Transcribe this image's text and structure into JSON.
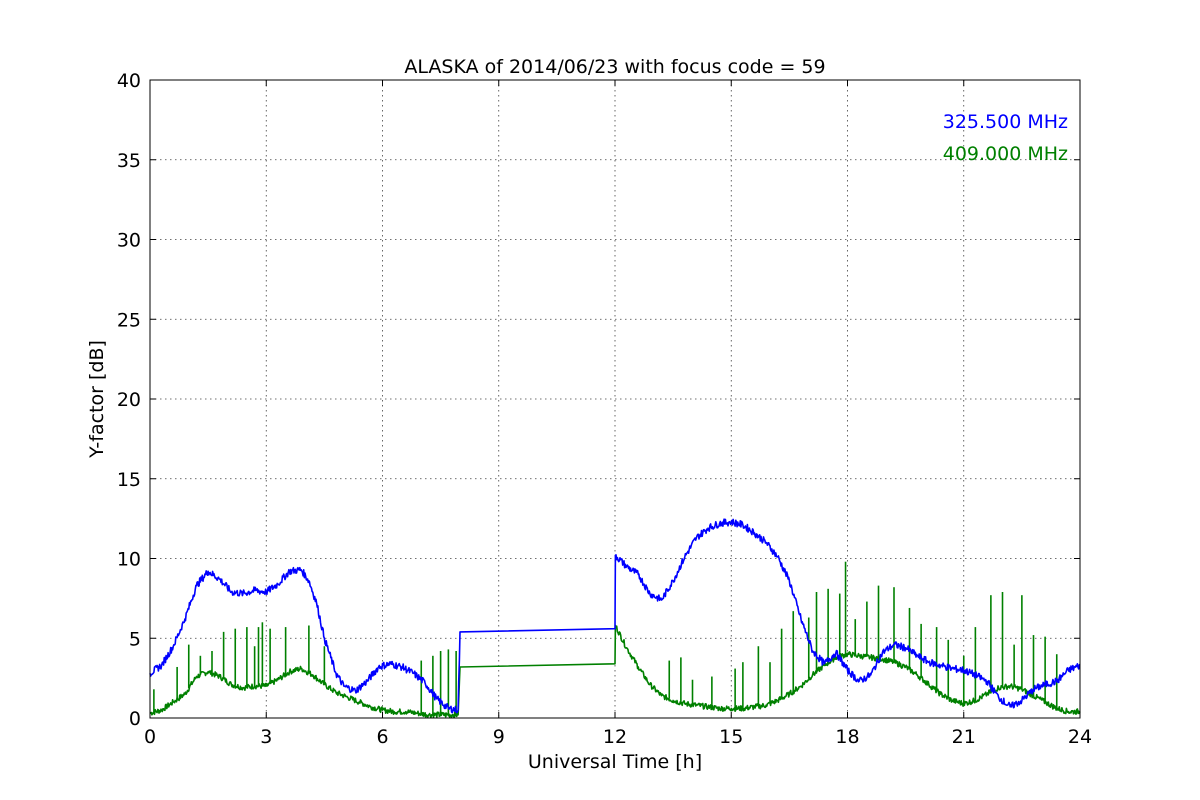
{
  "chart_data": {
    "type": "line",
    "title": "ALASKA of 2014/06/23 with focus code = 59",
    "xlabel": "Universal Time [h]",
    "ylabel": "Y-factor [dB]",
    "xlim": [
      0,
      24
    ],
    "ylim": [
      0,
      40
    ],
    "xticks": [
      0,
      3,
      6,
      9,
      12,
      15,
      18,
      21,
      24
    ],
    "yticks": [
      0,
      5,
      10,
      15,
      20,
      25,
      30,
      35,
      40
    ],
    "grid": true,
    "legend_position": "top-right",
    "series": [
      {
        "name": "325.500 MHz",
        "color": "#0000ff",
        "x": [
          0.0,
          0.3,
          0.6,
          0.9,
          1.2,
          1.5,
          1.8,
          2.1,
          2.4,
          2.7,
          3.0,
          3.3,
          3.6,
          3.9,
          4.1,
          4.3,
          4.5,
          4.8,
          5.0,
          5.3,
          5.6,
          5.9,
          6.2,
          6.5,
          6.8,
          7.1,
          7.4,
          7.7,
          7.95,
          8.0,
          12.0,
          12.01,
          12.3,
          12.6,
          12.9,
          13.2,
          13.5,
          13.8,
          14.1,
          14.4,
          14.7,
          15.0,
          15.3,
          15.6,
          15.9,
          16.2,
          16.5,
          16.8,
          17.1,
          17.4,
          17.7,
          18.0,
          18.3,
          18.6,
          18.9,
          19.2,
          19.5,
          19.8,
          20.1,
          20.4,
          20.7,
          21.0,
          21.3,
          21.6,
          21.9,
          22.2,
          22.5,
          22.8,
          23.1,
          23.4,
          23.7,
          24.0
        ],
        "y": [
          2.8,
          3.3,
          4.5,
          6.2,
          8.3,
          9.2,
          8.7,
          7.9,
          7.8,
          8.0,
          7.9,
          8.4,
          9.2,
          9.3,
          8.6,
          7.2,
          5.0,
          2.8,
          2.0,
          1.7,
          2.3,
          3.2,
          3.4,
          3.2,
          2.8,
          2.2,
          1.2,
          0.6,
          0.5,
          5.4,
          5.6,
          10.2,
          9.5,
          9.0,
          7.8,
          7.4,
          8.6,
          10.1,
          11.3,
          11.9,
          12.2,
          12.3,
          12.1,
          11.6,
          11.0,
          10.1,
          8.6,
          6.2,
          4.2,
          3.4,
          4.1,
          3.0,
          2.3,
          2.7,
          4.1,
          4.6,
          4.4,
          3.9,
          3.5,
          3.3,
          3.1,
          3.0,
          2.7,
          2.3,
          1.3,
          0.7,
          1.1,
          1.8,
          2.1,
          2.3,
          3.0,
          3.3
        ]
      },
      {
        "name": "409.000 MHz",
        "color": "#008000",
        "x": [
          0.0,
          0.3,
          0.6,
          0.9,
          1.2,
          1.5,
          1.8,
          2.1,
          2.4,
          2.7,
          3.0,
          3.3,
          3.6,
          3.9,
          4.2,
          4.5,
          4.8,
          5.1,
          5.4,
          5.7,
          6.0,
          6.3,
          6.6,
          6.9,
          7.2,
          7.5,
          7.8,
          7.95,
          8.0,
          12.0,
          12.01,
          12.3,
          12.6,
          12.9,
          13.2,
          13.5,
          13.8,
          14.1,
          14.4,
          14.7,
          15.0,
          15.3,
          15.6,
          15.9,
          16.2,
          16.5,
          16.8,
          17.1,
          17.4,
          17.7,
          18.0,
          18.3,
          18.6,
          18.9,
          19.2,
          19.5,
          19.8,
          20.1,
          20.4,
          20.7,
          21.0,
          21.3,
          21.6,
          21.9,
          22.2,
          22.5,
          22.8,
          23.1,
          23.4,
          23.7,
          24.0
        ],
        "y": [
          0.3,
          0.5,
          1.0,
          1.5,
          2.6,
          2.9,
          2.6,
          2.1,
          1.9,
          2.0,
          2.0,
          2.4,
          2.9,
          3.1,
          2.7,
          2.1,
          1.6,
          1.3,
          1.0,
          0.7,
          0.5,
          0.4,
          0.4,
          0.3,
          0.2,
          0.2,
          0.2,
          0.2,
          3.2,
          3.4,
          5.8,
          4.4,
          3.2,
          2.1,
          1.4,
          1.1,
          0.9,
          0.8,
          0.7,
          0.6,
          0.6,
          0.6,
          0.7,
          0.8,
          1.1,
          1.5,
          2.0,
          2.7,
          3.3,
          3.8,
          4.0,
          3.9,
          3.8,
          3.7,
          3.5,
          3.2,
          2.7,
          2.1,
          1.5,
          1.1,
          0.9,
          1.1,
          1.5,
          1.9,
          2.0,
          1.8,
          1.4,
          1.0,
          0.6,
          0.4,
          0.4
        ],
        "spikes": [
          {
            "x": 0.1,
            "y": 1.8
          },
          {
            "x": 0.7,
            "y": 3.2
          },
          {
            "x": 1.0,
            "y": 4.6
          },
          {
            "x": 1.3,
            "y": 3.9
          },
          {
            "x": 1.6,
            "y": 4.2
          },
          {
            "x": 1.9,
            "y": 5.4
          },
          {
            "x": 2.2,
            "y": 5.6
          },
          {
            "x": 2.5,
            "y": 5.7
          },
          {
            "x": 2.7,
            "y": 4.5
          },
          {
            "x": 2.8,
            "y": 5.7
          },
          {
            "x": 2.9,
            "y": 6.0
          },
          {
            "x": 3.1,
            "y": 5.6
          },
          {
            "x": 3.5,
            "y": 5.7
          },
          {
            "x": 4.1,
            "y": 5.8
          },
          {
            "x": 4.5,
            "y": 4.5
          },
          {
            "x": 7.0,
            "y": 3.6
          },
          {
            "x": 7.3,
            "y": 3.9
          },
          {
            "x": 7.5,
            "y": 4.2
          },
          {
            "x": 7.7,
            "y": 4.3
          },
          {
            "x": 7.9,
            "y": 4.2
          },
          {
            "x": 13.4,
            "y": 3.6
          },
          {
            "x": 13.7,
            "y": 3.8
          },
          {
            "x": 14.0,
            "y": 2.4
          },
          {
            "x": 14.5,
            "y": 2.6
          },
          {
            "x": 15.1,
            "y": 3.1
          },
          {
            "x": 15.3,
            "y": 3.5
          },
          {
            "x": 15.7,
            "y": 4.5
          },
          {
            "x": 16.0,
            "y": 3.5
          },
          {
            "x": 16.3,
            "y": 5.6
          },
          {
            "x": 16.6,
            "y": 6.7
          },
          {
            "x": 17.0,
            "y": 6.3
          },
          {
            "x": 17.2,
            "y": 7.9
          },
          {
            "x": 17.5,
            "y": 8.1
          },
          {
            "x": 17.8,
            "y": 7.8
          },
          {
            "x": 17.95,
            "y": 9.8
          },
          {
            "x": 18.2,
            "y": 6.2
          },
          {
            "x": 18.5,
            "y": 7.3
          },
          {
            "x": 18.8,
            "y": 8.3
          },
          {
            "x": 19.2,
            "y": 8.2
          },
          {
            "x": 19.6,
            "y": 6.9
          },
          {
            "x": 19.9,
            "y": 5.9
          },
          {
            "x": 20.3,
            "y": 5.7
          },
          {
            "x": 20.6,
            "y": 4.9
          },
          {
            "x": 21.0,
            "y": 3.9
          },
          {
            "x": 21.3,
            "y": 5.7
          },
          {
            "x": 21.7,
            "y": 7.7
          },
          {
            "x": 22.0,
            "y": 7.9
          },
          {
            "x": 22.3,
            "y": 4.6
          },
          {
            "x": 22.5,
            "y": 7.7
          },
          {
            "x": 22.8,
            "y": 5.2
          },
          {
            "x": 23.1,
            "y": 5.1
          },
          {
            "x": 23.4,
            "y": 4.0
          }
        ]
      }
    ]
  }
}
